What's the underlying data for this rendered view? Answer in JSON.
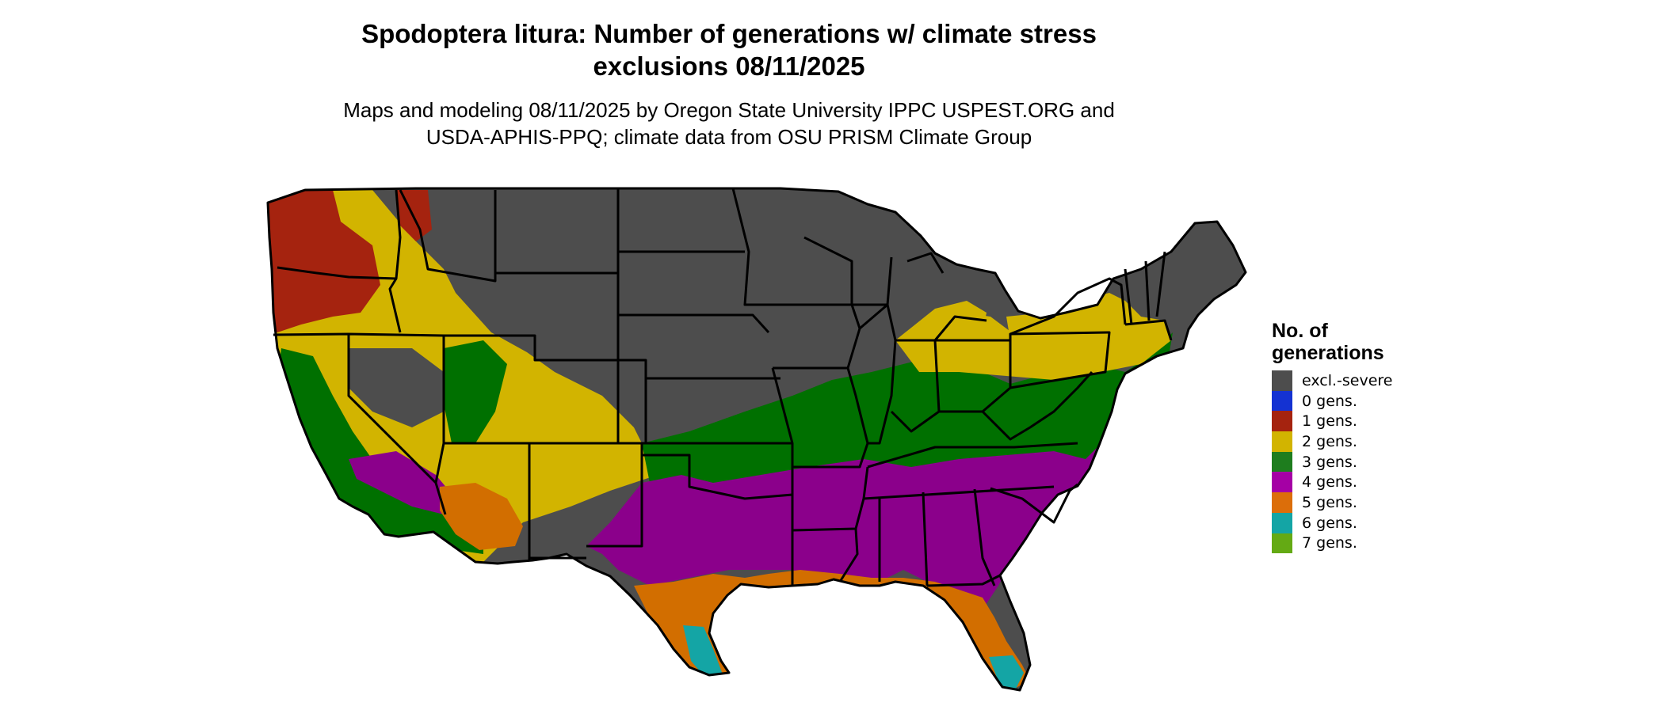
{
  "title": {
    "line1": "Spodoptera litura: Number of generations w/ climate stress",
    "line2": "exclusions 08/11/2025"
  },
  "subtitle": {
    "line1": "Maps and modeling 08/11/2025 by Oregon State University IPPC USPEST.ORG and",
    "line2": "USDA-APHIS-PPQ; climate data from OSU PRISM Climate Group"
  },
  "legend": {
    "title_line1": "No. of",
    "title_line2": "generations",
    "items": [
      {
        "label": "excl.-severe",
        "color": "#4d4d4d"
      },
      {
        "label": "0 gens.",
        "color": "#1432d2"
      },
      {
        "label": "1 gens.",
        "color": "#a5230f"
      },
      {
        "label": "2 gens.",
        "color": "#d2b400"
      },
      {
        "label": "3 gens.",
        "color": "#1e7d1e"
      },
      {
        "label": "4 gens.",
        "color": "#a500a5"
      },
      {
        "label": "5 gens.",
        "color": "#dc6e0a"
      },
      {
        "label": "6 gens.",
        "color": "#14a5a5"
      },
      {
        "label": "7 gens.",
        "color": "#64aa14"
      }
    ]
  },
  "map_colors": {
    "excluded": "#4d4d4d",
    "one_gen": "#a5230f",
    "two_gen": "#d2b400",
    "three_gen": "#007000",
    "four_gen": "#8b008b",
    "five_gen": "#d26e00",
    "six_gen": "#14a5a5",
    "border": "#000000"
  }
}
